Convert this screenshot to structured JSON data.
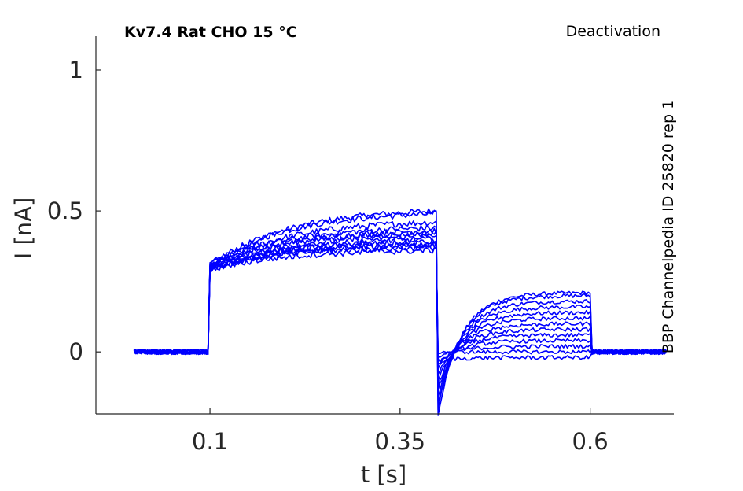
{
  "title": {
    "left": "Kv7.4  Rat  CHO  15 °C",
    "right": "Deactivation"
  },
  "side_label": "BBP Channelpedia ID 25820 rep 1",
  "colors": {
    "trace": "#0000ff",
    "axis": "#262626"
  },
  "chart_data": {
    "type": "line",
    "xlabel": "t [s]",
    "ylabel": "I [nA]",
    "xlim": [
      -0.05,
      0.71
    ],
    "ylim": [
      -0.22,
      1.12
    ],
    "xticks": [
      0.1,
      0.35,
      0.6
    ],
    "xtick_labels": [
      "0.1",
      "0.35",
      "0.6"
    ],
    "yticks": [
      0,
      0.5,
      1
    ],
    "ytick_labels": [
      "0",
      "0.5",
      "1"
    ],
    "grid": false,
    "protocol": {
      "pulse_start": 0.1,
      "step_time": 0.4,
      "pulse_end": 0.6,
      "end": 0.7
    },
    "series": [
      {
        "values": {
          "baseline": 0.0,
          "act_start": 0.3,
          "act_end": 0.5,
          "tail_peak": -0.22,
          "tail_ss": 0.21
        }
      },
      {
        "values": {
          "baseline": 0.0,
          "act_start": 0.31,
          "act_end": 0.49,
          "tail_peak": -0.2,
          "tail_ss": 0.2
        }
      },
      {
        "values": {
          "baseline": 0.0,
          "act_start": 0.3,
          "act_end": 0.46,
          "tail_peak": -0.18,
          "tail_ss": 0.18
        }
      },
      {
        "values": {
          "baseline": 0.0,
          "act_start": 0.31,
          "act_end": 0.44,
          "tail_peak": -0.16,
          "tail_ss": 0.16
        }
      },
      {
        "values": {
          "baseline": 0.0,
          "act_start": 0.3,
          "act_end": 0.43,
          "tail_peak": -0.14,
          "tail_ss": 0.14
        }
      },
      {
        "values": {
          "baseline": 0.0,
          "act_start": 0.31,
          "act_end": 0.42,
          "tail_peak": -0.12,
          "tail_ss": 0.12
        }
      },
      {
        "values": {
          "baseline": 0.0,
          "act_start": 0.3,
          "act_end": 0.41,
          "tail_peak": -0.1,
          "tail_ss": 0.1
        }
      },
      {
        "values": {
          "baseline": 0.0,
          "act_start": 0.29,
          "act_end": 0.4,
          "tail_peak": -0.08,
          "tail_ss": 0.08
        }
      },
      {
        "values": {
          "baseline": 0.0,
          "act_start": 0.3,
          "act_end": 0.39,
          "tail_peak": -0.06,
          "tail_ss": 0.06
        }
      },
      {
        "values": {
          "baseline": 0.0,
          "act_start": 0.29,
          "act_end": 0.38,
          "tail_peak": -0.04,
          "tail_ss": 0.04
        }
      },
      {
        "values": {
          "baseline": 0.0,
          "act_start": 0.3,
          "act_end": 0.37,
          "tail_peak": -0.02,
          "tail_ss": 0.02
        }
      },
      {
        "values": {
          "baseline": 0.0,
          "act_start": 0.29,
          "act_end": 0.36,
          "tail_peak": 0.0,
          "tail_ss": 0.0
        }
      },
      {
        "values": {
          "baseline": 0.0,
          "act_start": 0.3,
          "act_end": 0.38,
          "tail_peak": -0.03,
          "tail_ss": -0.02
        }
      }
    ]
  }
}
